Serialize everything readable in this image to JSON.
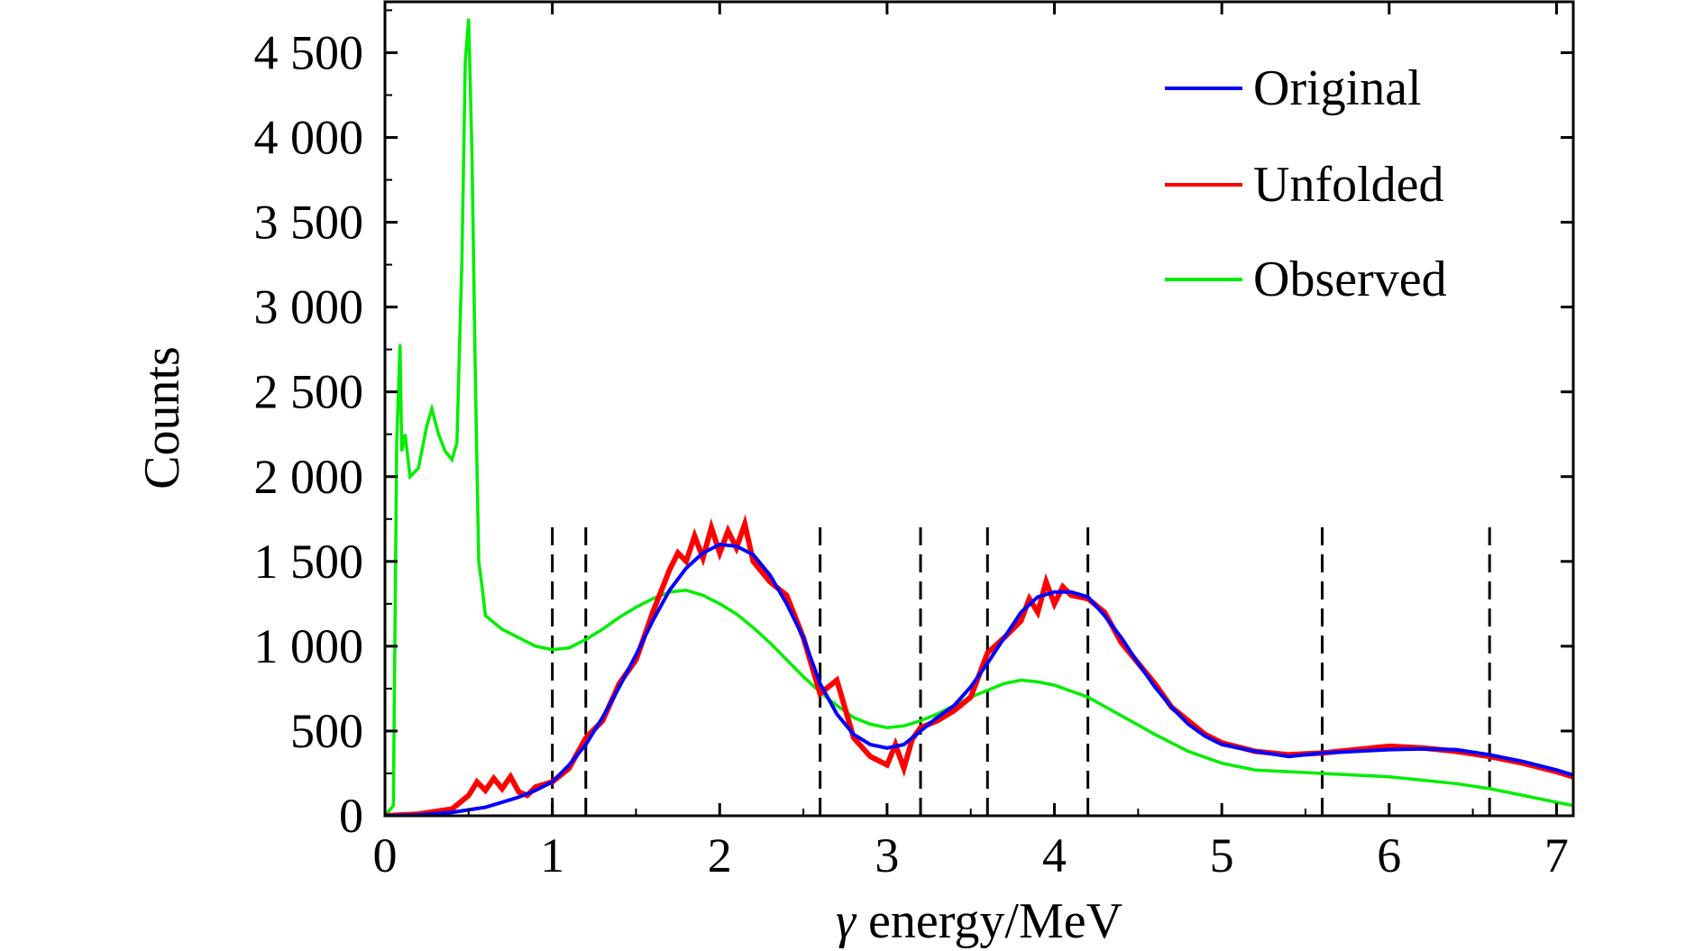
{
  "chart_data": {
    "type": "line",
    "xlabel": "γ energy/MeV",
    "ylabel": "Counts",
    "xlim": [
      0,
      7.1
    ],
    "ylim": [
      0,
      4800
    ],
    "xticks": [
      0,
      1,
      2,
      3,
      4,
      5,
      6,
      7
    ],
    "xtick_labels": [
      "0",
      "1",
      "2",
      "3",
      "4",
      "5",
      "6",
      "7"
    ],
    "yticks": [
      0,
      500,
      1000,
      1500,
      2000,
      2500,
      3000,
      3500,
      4000,
      4500
    ],
    "ytick_labels": [
      "0",
      "500",
      "1 000",
      "1 500",
      "2 000",
      "2 500",
      "3 000",
      "3 500",
      "4 000",
      "4 500"
    ],
    "grid": false,
    "legend_position": "top-right",
    "vlines": [
      1.0,
      1.2,
      2.6,
      3.2,
      3.6,
      4.2,
      5.6,
      6.6
    ],
    "vline_ymax": 1750,
    "series": [
      {
        "name": "Original",
        "color": "#0000ff",
        "x": [
          0.0,
          0.2,
          0.4,
          0.6,
          0.7,
          0.8,
          0.9,
          1.0,
          1.1,
          1.2,
          1.3,
          1.4,
          1.5,
          1.6,
          1.7,
          1.8,
          1.9,
          2.0,
          2.1,
          2.2,
          2.3,
          2.4,
          2.5,
          2.6,
          2.7,
          2.8,
          2.9,
          3.0,
          3.1,
          3.2,
          3.3,
          3.4,
          3.5,
          3.6,
          3.7,
          3.8,
          3.9,
          4.0,
          4.1,
          4.2,
          4.3,
          4.4,
          4.5,
          4.6,
          4.7,
          4.8,
          4.9,
          5.0,
          5.2,
          5.4,
          5.6,
          5.8,
          6.0,
          6.2,
          6.4,
          6.6,
          6.8,
          7.0,
          7.1
        ],
        "y": [
          0,
          5,
          20,
          50,
          80,
          110,
          150,
          200,
          300,
          420,
          580,
          760,
          950,
          1150,
          1330,
          1460,
          1550,
          1600,
          1590,
          1540,
          1420,
          1250,
          1050,
          780,
          600,
          480,
          420,
          400,
          420,
          500,
          580,
          650,
          760,
          900,
          1050,
          1200,
          1290,
          1320,
          1320,
          1290,
          1180,
          1050,
          900,
          760,
          640,
          540,
          470,
          420,
          380,
          350,
          370,
          380,
          390,
          395,
          390,
          360,
          320,
          270,
          240
        ]
      },
      {
        "name": "Unfolded",
        "color": "#ff0000",
        "x": [
          0.0,
          0.2,
          0.4,
          0.5,
          0.55,
          0.6,
          0.65,
          0.7,
          0.75,
          0.8,
          0.85,
          0.9,
          1.0,
          1.1,
          1.2,
          1.3,
          1.4,
          1.5,
          1.6,
          1.7,
          1.75,
          1.8,
          1.85,
          1.9,
          1.95,
          2.0,
          2.05,
          2.1,
          2.15,
          2.2,
          2.3,
          2.4,
          2.5,
          2.6,
          2.7,
          2.8,
          2.9,
          3.0,
          3.05,
          3.1,
          3.15,
          3.2,
          3.3,
          3.4,
          3.5,
          3.6,
          3.7,
          3.8,
          3.85,
          3.9,
          3.95,
          4.0,
          4.05,
          4.1,
          4.2,
          4.3,
          4.4,
          4.5,
          4.6,
          4.7,
          4.8,
          4.9,
          5.0,
          5.2,
          5.4,
          5.6,
          5.8,
          6.0,
          6.2,
          6.4,
          6.6,
          6.8,
          7.0,
          7.1
        ],
        "y": [
          0,
          10,
          40,
          120,
          200,
          150,
          220,
          160,
          230,
          140,
          120,
          170,
          200,
          280,
          460,
          560,
          780,
          920,
          1200,
          1450,
          1550,
          1500,
          1650,
          1520,
          1700,
          1550,
          1680,
          1580,
          1720,
          1500,
          1380,
          1300,
          1050,
          720,
          800,
          460,
          350,
          300,
          420,
          280,
          450,
          520,
          560,
          620,
          700,
          960,
          1050,
          1150,
          1280,
          1200,
          1380,
          1250,
          1350,
          1300,
          1280,
          1200,
          1020,
          900,
          780,
          640,
          560,
          480,
          430,
          380,
          360,
          370,
          390,
          410,
          400,
          380,
          350,
          310,
          260,
          230
        ]
      },
      {
        "name": "Observed",
        "color": "#00ee00",
        "x": [
          0.0,
          0.05,
          0.07,
          0.09,
          0.1,
          0.12,
          0.15,
          0.2,
          0.25,
          0.28,
          0.32,
          0.36,
          0.4,
          0.43,
          0.46,
          0.48,
          0.5,
          0.52,
          0.54,
          0.56,
          0.58,
          0.6,
          0.7,
          0.8,
          0.9,
          1.0,
          1.1,
          1.2,
          1.3,
          1.4,
          1.5,
          1.6,
          1.7,
          1.8,
          1.9,
          2.0,
          2.1,
          2.2,
          2.3,
          2.4,
          2.5,
          2.6,
          2.7,
          2.8,
          2.9,
          3.0,
          3.1,
          3.2,
          3.3,
          3.4,
          3.5,
          3.6,
          3.7,
          3.8,
          3.9,
          4.0,
          4.2,
          4.4,
          4.6,
          4.8,
          5.0,
          5.2,
          5.4,
          5.6,
          5.8,
          6.0,
          6.2,
          6.4,
          6.6,
          6.8,
          7.0,
          7.1
        ],
        "y": [
          0,
          60,
          2200,
          2780,
          2150,
          2250,
          2000,
          2050,
          2300,
          2400,
          2250,
          2150,
          2100,
          2200,
          3300,
          4450,
          4700,
          3900,
          2600,
          1500,
          1350,
          1180,
          1100,
          1050,
          1000,
          980,
          990,
          1040,
          1100,
          1170,
          1230,
          1280,
          1320,
          1330,
          1300,
          1250,
          1190,
          1110,
          1020,
          920,
          820,
          730,
          650,
          580,
          540,
          520,
          530,
          560,
          600,
          650,
          700,
          740,
          780,
          800,
          790,
          770,
          700,
          590,
          480,
          380,
          310,
          270,
          260,
          250,
          240,
          230,
          210,
          190,
          160,
          120,
          80,
          60
        ]
      }
    ]
  }
}
